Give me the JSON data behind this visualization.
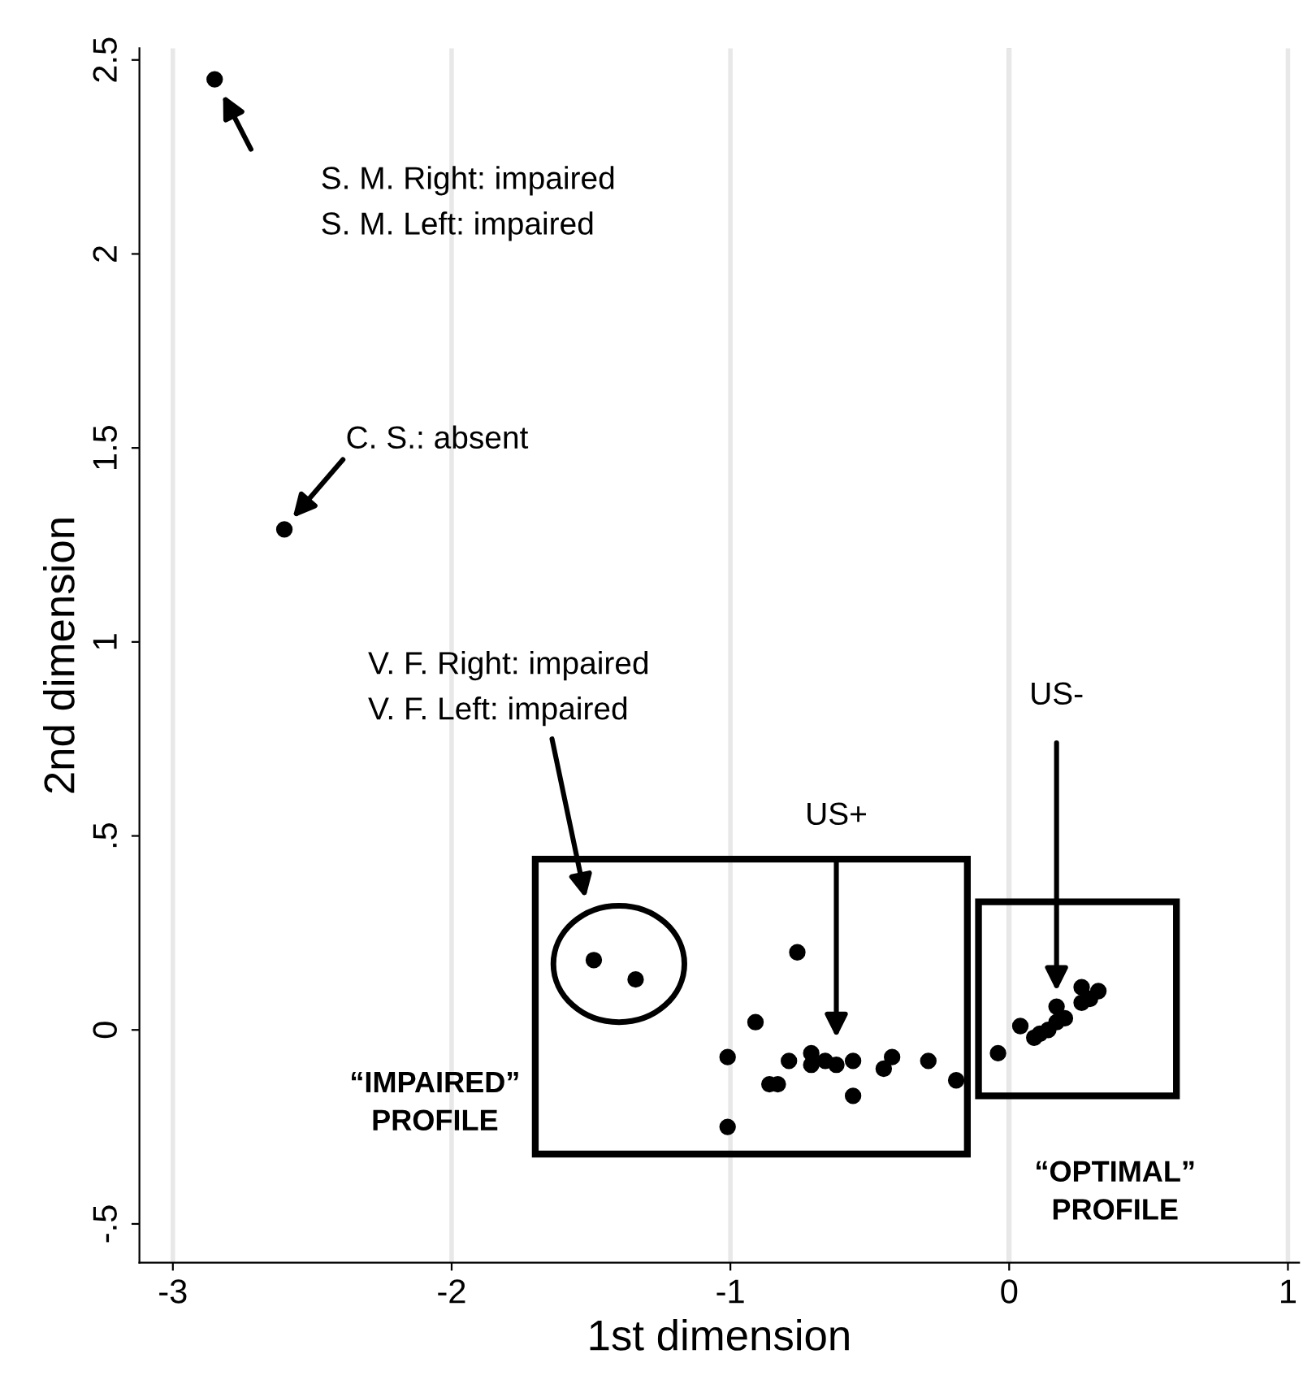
{
  "chart_data": {
    "type": "scatter",
    "xlabel": "1st dimension",
    "ylabel": "2nd dimension",
    "x": [
      -2.85,
      -2.6,
      -1.49,
      -1.34,
      -0.76,
      -0.91,
      -1.01,
      -1.01,
      -0.79,
      -0.86,
      -0.83,
      -0.71,
      -0.71,
      -0.66,
      -0.62,
      -0.56,
      -0.56,
      -0.42,
      -0.45,
      -0.29,
      -0.19,
      -0.04,
      0.04,
      0.09,
      0.11,
      0.14,
      0.17,
      0.2,
      0.26,
      0.29,
      0.32,
      0.26,
      0.17
    ],
    "values": [
      2.45,
      1.29,
      0.18,
      0.13,
      0.2,
      0.02,
      -0.07,
      -0.25,
      -0.08,
      -0.14,
      -0.14,
      -0.06,
      -0.09,
      -0.08,
      -0.09,
      -0.08,
      -0.17,
      -0.07,
      -0.1,
      -0.08,
      -0.13,
      -0.06,
      0.01,
      -0.02,
      -0.01,
      0.0,
      0.02,
      0.03,
      0.07,
      0.08,
      0.1,
      0.11,
      0.06
    ],
    "color": "#000000",
    "marker": "circle",
    "xlim": [
      -3.12,
      1.04
    ],
    "ylim": [
      -0.6,
      2.53
    ],
    "xticks": [
      -3,
      -2,
      -1,
      0,
      1
    ],
    "yticks": [
      {
        "value": -0.5,
        "label": "-.5"
      },
      0,
      {
        "value": 0.5,
        "label": ".5"
      },
      1,
      1.5,
      2,
      2.5
    ],
    "grid": "x",
    "ref_lines": [
      {
        "axis": "x",
        "value": 0,
        "color": "#bbbbbb"
      }
    ],
    "annotations": [
      "S. M. Right: impaired\nS. M. Left: impaired",
      "C. S.: absent",
      "V. F. Right: impaired\nV. F. Left: impaired",
      "US+",
      "US-",
      "“IMPAIRED”\nPROFILE",
      "“OPTIMAL”\nPROFILE"
    ]
  }
}
